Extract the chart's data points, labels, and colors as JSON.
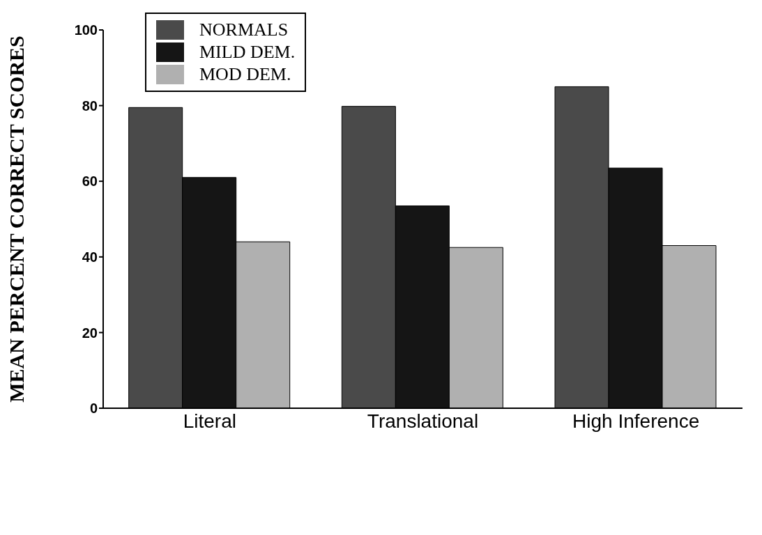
{
  "chart_data": {
    "type": "bar",
    "ylabel": "MEAN PERCENT CORRECT SCORES",
    "categories": [
      "Literal",
      "Translational",
      "High Inference"
    ],
    "series": [
      {
        "name": "NORMALS",
        "color": "#4a4a4a",
        "values": [
          79.5,
          79.8,
          85
        ]
      },
      {
        "name": "MILD DEM.",
        "color": "#151515",
        "values": [
          61,
          53.5,
          63.5
        ]
      },
      {
        "name": "MOD DEM.",
        "color": "#b0b0b0",
        "values": [
          44,
          42.5,
          43
        ]
      }
    ],
    "ylim": [
      0,
      100
    ],
    "yticks": [
      0,
      20,
      40,
      60,
      80,
      100
    ],
    "grid": false,
    "legend": "top left"
  }
}
